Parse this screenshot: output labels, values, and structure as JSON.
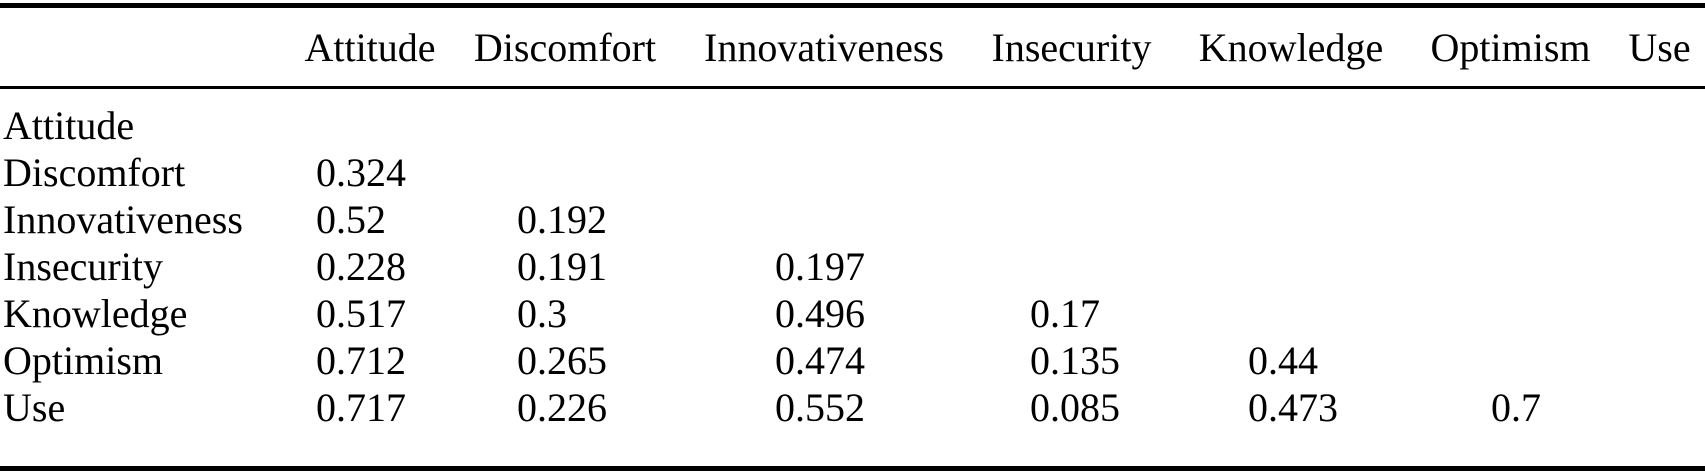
{
  "colors": {
    "text": "#000000",
    "background": "#ffffff",
    "rule": "#000000"
  },
  "table": {
    "type": "correlation-matrix",
    "columns": [
      "",
      "Attitude",
      "Discomfort",
      "Innovativeness",
      "Insecurity",
      "Knowledge",
      "Optimism",
      "Use"
    ],
    "rows": [
      {
        "label": "Attitude",
        "values": [
          "",
          "",
          "",
          "",
          "",
          "",
          ""
        ]
      },
      {
        "label": "Discomfort",
        "values": [
          "0.324",
          "",
          "",
          "",
          "",
          "",
          ""
        ]
      },
      {
        "label": "Innovativeness",
        "values": [
          "0.52",
          "0.192",
          "",
          "",
          "",
          "",
          ""
        ]
      },
      {
        "label": "Insecurity",
        "values": [
          "0.228",
          "0.191",
          "0.197",
          "",
          "",
          "",
          ""
        ]
      },
      {
        "label": "Knowledge",
        "values": [
          "0.517",
          "0.3",
          "0.496",
          "0.17",
          "",
          "",
          ""
        ]
      },
      {
        "label": "Optimism",
        "values": [
          "0.712",
          "0.265",
          "0.474",
          "0.135",
          "0.44",
          "",
          ""
        ]
      },
      {
        "label": "Use",
        "values": [
          "0.717",
          "0.226",
          "0.552",
          "0.085",
          "0.473",
          "0.7",
          ""
        ]
      }
    ]
  }
}
